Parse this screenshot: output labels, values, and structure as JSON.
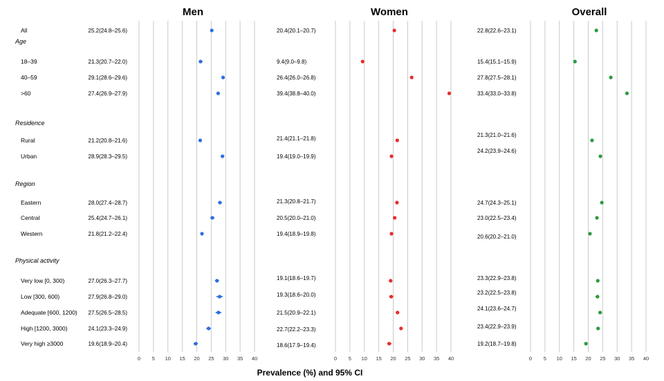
{
  "chart_data": {
    "type": "scatter",
    "subtype": "forest-plot",
    "xlabel": "Prevalence (%) and 95% CI",
    "xlim": [
      0,
      40
    ],
    "xticks": [
      0,
      5,
      10,
      15,
      20,
      25,
      30,
      35,
      40
    ],
    "grid": true,
    "panels": [
      {
        "title": "Men",
        "color": "#2c6fe0"
      },
      {
        "title": "Women",
        "color": "#e82c2c"
      },
      {
        "title": "Overall",
        "color": "#2b9a3e"
      }
    ],
    "sections": [
      {
        "label": "",
        "rows": [
          {
            "label": "All",
            "men": {
              "text": "25.2(24.8–25.6)",
              "v": 25.2,
              "lo": 24.8,
              "hi": 25.6
            },
            "women": {
              "text": "20.4(20.1–20.7)",
              "v": 20.4,
              "lo": 20.1,
              "hi": 20.7
            },
            "overall": {
              "text": "22.8(22.6–23.1)",
              "v": 22.8,
              "lo": 22.6,
              "hi": 23.1
            }
          }
        ]
      },
      {
        "label": "Age",
        "rows": [
          {
            "label": "18–39",
            "men": {
              "text": "21.3(20.7–22.0)",
              "v": 21.3,
              "lo": 20.7,
              "hi": 22.0
            },
            "women": {
              "text": "9.4(9.0–9.8)",
              "v": 9.4,
              "lo": 9.0,
              "hi": 9.8
            },
            "overall": {
              "text": "15.4(15.1–15.9)",
              "v": 15.4,
              "lo": 15.1,
              "hi": 15.9
            }
          },
          {
            "label": "40–59",
            "men": {
              "text": "29.1(28.6–29.6)",
              "v": 29.1,
              "lo": 28.6,
              "hi": 29.6
            },
            "women": {
              "text": "26.4(26.0–26.8)",
              "v": 26.4,
              "lo": 26.0,
              "hi": 26.8
            },
            "overall": {
              "text": "27.8(27.5–28.1)",
              "v": 27.8,
              "lo": 27.5,
              "hi": 28.1
            }
          },
          {
            "label": ">60",
            "men": {
              "text": "27.4(26.9–27.9)",
              "v": 27.4,
              "lo": 26.9,
              "hi": 27.9
            },
            "women": {
              "text": "39.4(38.8–40.0)",
              "v": 39.4,
              "lo": 38.8,
              "hi": 40.0
            },
            "overall": {
              "text": "33.4(33.0–33.8)",
              "v": 33.4,
              "lo": 33.0,
              "hi": 33.8
            }
          }
        ]
      },
      {
        "label": "Residence",
        "rows": [
          {
            "label": "Rural",
            "men": {
              "text": "21.2(20.8–21.6)",
              "v": 21.2,
              "lo": 20.8,
              "hi": 21.6
            },
            "women": {
              "text": "21.4(21.1–21.8)",
              "v": 21.4,
              "lo": 21.1,
              "hi": 21.8
            },
            "overall": {
              "text": "21.3(21.0–21.6)",
              "v": 21.3,
              "lo": 21.0,
              "hi": 21.6
            }
          },
          {
            "label": "Urban",
            "men": {
              "text": "28.9(28.3–29.5)",
              "v": 28.9,
              "lo": 28.3,
              "hi": 29.5
            },
            "women": {
              "text": "19.4(19.0–19.9)",
              "v": 19.4,
              "lo": 19.0,
              "hi": 19.9
            },
            "overall": {
              "text": "24.2(23.9–24.6)",
              "v": 24.2,
              "lo": 23.9,
              "hi": 24.6
            }
          }
        ]
      },
      {
        "label": "Region",
        "rows": [
          {
            "label": "Eastern",
            "men": {
              "text": "28.0(27.4–28.7)",
              "v": 28.0,
              "lo": 27.4,
              "hi": 28.7
            },
            "women": {
              "text": "21.3(20.8–21.7)",
              "v": 21.3,
              "lo": 20.8,
              "hi": 21.7
            },
            "overall": {
              "text": "24.7(24.3–25.1)",
              "v": 24.7,
              "lo": 24.3,
              "hi": 25.1
            }
          },
          {
            "label": "Central",
            "men": {
              "text": "25.4(24.7–26.1)",
              "v": 25.4,
              "lo": 24.7,
              "hi": 26.1
            },
            "women": {
              "text": "20.5(20.0–21.0)",
              "v": 20.5,
              "lo": 20.0,
              "hi": 21.0
            },
            "overall": {
              "text": "23.0(22.5–23.4)",
              "v": 23.0,
              "lo": 22.5,
              "hi": 23.4
            }
          },
          {
            "label": "Western",
            "men": {
              "text": "21.8(21.2–22.4)",
              "v": 21.8,
              "lo": 21.2,
              "hi": 22.4
            },
            "women": {
              "text": "19.4(18.9–19.8)",
              "v": 19.4,
              "lo": 18.9,
              "hi": 19.8
            },
            "overall": {
              "text": "20.6(20.2–21.0)",
              "v": 20.6,
              "lo": 20.2,
              "hi": 21.0
            }
          }
        ]
      },
      {
        "label": "Physical activity",
        "rows": [
          {
            "label": "Very low [0, 300)",
            "men": {
              "text": "27.0(26.3–27.7)",
              "v": 27.0,
              "lo": 26.3,
              "hi": 27.7
            },
            "women": {
              "text": "19.1(18.6–19.7)",
              "v": 19.1,
              "lo": 18.6,
              "hi": 19.7
            },
            "overall": {
              "text": "23.3(22.9–23.8)",
              "v": 23.3,
              "lo": 22.9,
              "hi": 23.8
            }
          },
          {
            "label": "Low [300, 600)",
            "men": {
              "text": "27.9(26.8–29.0)",
              "v": 27.9,
              "lo": 26.8,
              "hi": 29.0
            },
            "women": {
              "text": "19.3(18.6–20.0)",
              "v": 19.3,
              "lo": 18.6,
              "hi": 20.0
            },
            "overall": {
              "text": "23.2(22.5–23.8)",
              "v": 23.2,
              "lo": 22.5,
              "hi": 23.8
            }
          },
          {
            "label": "Adequate [600, 1200)",
            "men": {
              "text": "27.5(26.5–28.5)",
              "v": 27.5,
              "lo": 26.5,
              "hi": 28.5
            },
            "women": {
              "text": "21.5(20.9–22.1)",
              "v": 21.5,
              "lo": 20.9,
              "hi": 22.1
            },
            "overall": {
              "text": "24.1(23.6–24.7)",
              "v": 24.1,
              "lo": 23.6,
              "hi": 24.7
            }
          },
          {
            "label": "High [1200, 3000)",
            "men": {
              "text": "24.1(23.3–24.9)",
              "v": 24.1,
              "lo": 23.3,
              "hi": 24.9
            },
            "women": {
              "text": "22.7(22.2–23.3)",
              "v": 22.7,
              "lo": 22.2,
              "hi": 23.3
            },
            "overall": {
              "text": "23.4(22.9–23.9)",
              "v": 23.4,
              "lo": 22.9,
              "hi": 23.9
            }
          },
          {
            "label": "Very high ≥3000",
            "men": {
              "text": "19.6(18.9–20.4)",
              "v": 19.6,
              "lo": 18.9,
              "hi": 20.4
            },
            "women": {
              "text": "18.6(17.9–19.4)",
              "v": 18.6,
              "lo": 17.9,
              "hi": 19.4
            },
            "overall": {
              "text": "19.2(18.7–19.8)",
              "v": 19.2,
              "lo": 18.7,
              "hi": 19.8
            }
          }
        ]
      }
    ]
  }
}
